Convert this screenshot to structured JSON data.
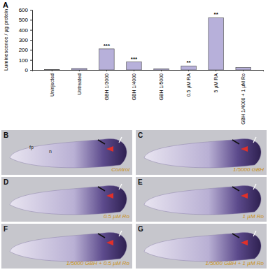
{
  "chart_data": {
    "type": "bar",
    "title": "A",
    "y_label": "Luminescence / µg protein",
    "categories": [
      "Uninjected",
      "Untreated",
      "GBH 1/3000",
      "GBH 1/4000",
      "GBH 1/5000",
      "0.5 µM RA",
      "5 µM RA",
      "GBH 1/4000 + 1 µM Ro"
    ],
    "values": [
      3,
      15,
      210,
      80,
      12,
      40,
      520,
      25
    ],
    "color": "#b7b0da",
    "ylim": [
      0,
      600
    ],
    "yticks": [
      0,
      100,
      200,
      300,
      400,
      500,
      600
    ],
    "annotations": [
      {
        "text": "***",
        "index": 2
      },
      {
        "text": "***",
        "index": 3
      },
      {
        "text": "**",
        "index": 5
      },
      {
        "text": "**",
        "index": 6
      }
    ]
  },
  "panels": [
    {
      "letter": "B",
      "label": "Control",
      "marks": [
        "fp",
        "n"
      ]
    },
    {
      "letter": "C",
      "label": "1/5000 GBH",
      "marks": []
    },
    {
      "letter": "D",
      "label": "0.5 µM Ro",
      "marks": []
    },
    {
      "letter": "E",
      "label": "1 µM Ro",
      "marks": []
    },
    {
      "letter": "F",
      "label": "1/5000 GBH + 0.5 µM Ro",
      "marks": []
    },
    {
      "letter": "G",
      "label": "1/5000 GBH + 1 µM Ro",
      "marks": []
    }
  ]
}
